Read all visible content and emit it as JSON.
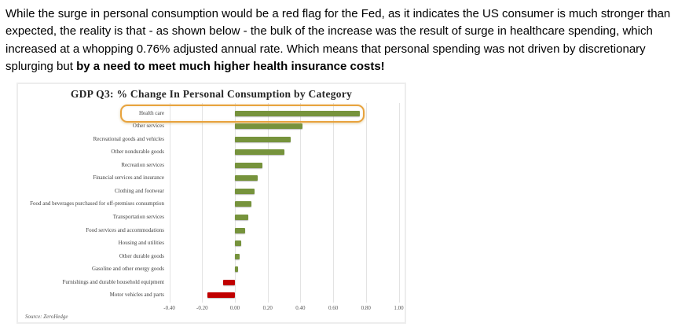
{
  "intro": {
    "text": "While the surge in personal consumption would be a red flag for the Fed, as it indicates the US consumer is much stronger than expected, the reality is that - as shown below - the bulk of the increase was the result of surge in healthcare spending, which increased at a whopping 0.76% adjusted annual rate. Which means that personal spending was not driven by discretionary splurging but ",
    "bold_text": "by a need to meet much higher health insurance costs!"
  },
  "chart_data": {
    "type": "bar",
    "orientation": "horizontal",
    "title": "GDP Q3: % Change In Personal Consumption by Category",
    "categories": [
      "Health care",
      "Other services",
      "Recreational goods and vehicles",
      "Other nondurable goods",
      "Recreation services",
      "Financial services and insurance",
      "Clothing and footwear",
      "Food and beverages purchased for off-premises consumption",
      "Transportation services",
      "Food services and accommodations",
      "Housing and utilities",
      "Other durable goods",
      "Gasoline and other energy goods",
      "Furnishings and durable household equipment",
      "Motor vehicles and parts"
    ],
    "values": [
      0.76,
      0.41,
      0.34,
      0.3,
      0.17,
      0.14,
      0.12,
      0.1,
      0.08,
      0.06,
      0.04,
      0.03,
      0.02,
      -0.07,
      -0.17
    ],
    "xlim": [
      -0.4,
      1.0
    ],
    "x_ticks": [
      -0.4,
      -0.2,
      0.0,
      0.2,
      0.4,
      0.6,
      0.8,
      1.0
    ],
    "x_tick_labels": [
      "-0.40",
      "-0.20",
      "0.00",
      "0.20",
      "0.40",
      "0.60",
      "0.80",
      "1.00"
    ],
    "grid": true,
    "legend": false,
    "positive_color": "#76933C",
    "negative_color": "#C00000",
    "highlight": {
      "category": "Health care",
      "box_color": "#E8A33D"
    },
    "source": "Source: ZeroHedge"
  }
}
